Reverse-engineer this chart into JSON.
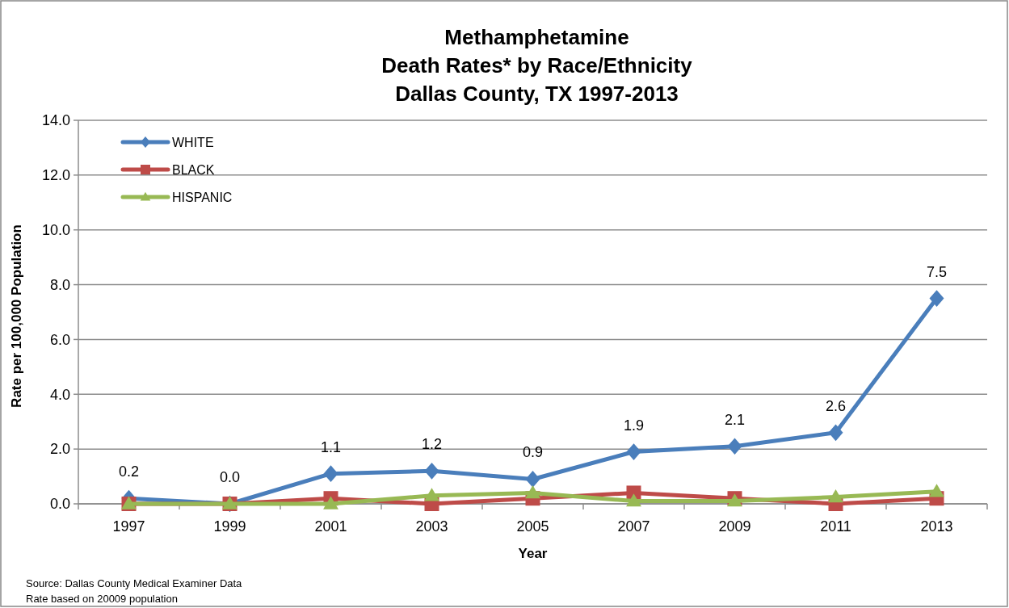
{
  "chart_data": {
    "type": "line",
    "title": "Methamphetamine\nDeath Rates* by Race/Ethnicity\nDallas County, TX 1997-2013",
    "xlabel": "Year",
    "ylabel": "Rate per 100,000 Population",
    "categories": [
      "1997",
      "1999",
      "2001",
      "2003",
      "2005",
      "2007",
      "2009",
      "2011",
      "2013"
    ],
    "series": [
      {
        "name": "WHITE",
        "color": "#4a7ebb",
        "marker": "diamond",
        "values": [
          0.2,
          0.0,
          1.1,
          1.2,
          0.9,
          1.9,
          2.1,
          2.6,
          7.5
        ],
        "value_labels": [
          "0.2",
          "0.0",
          "1.1",
          "1.2",
          "0.9",
          "1.9",
          "2.1",
          "2.6",
          "7.5"
        ]
      },
      {
        "name": "BLACK",
        "color": "#be4b48",
        "marker": "square",
        "values": [
          0.0,
          0.0,
          0.2,
          0.0,
          0.2,
          0.4,
          0.2,
          0.0,
          0.2
        ]
      },
      {
        "name": "HISPANIC",
        "color": "#98b954",
        "marker": "triangle",
        "values": [
          0.0,
          0.0,
          0.0,
          0.3,
          0.4,
          0.1,
          0.1,
          0.25,
          0.45
        ]
      }
    ],
    "ylim": [
      0,
      14
    ],
    "yticks": [
      {
        "value": 0,
        "label": "0.0"
      },
      {
        "value": 2,
        "label": "2.0"
      },
      {
        "value": 4,
        "label": "4.0"
      },
      {
        "value": 6,
        "label": "6.0"
      },
      {
        "value": 8,
        "label": "8.0"
      },
      {
        "value": 10,
        "label": "10.0"
      },
      {
        "value": 12,
        "label": "12.0"
      },
      {
        "value": 14,
        "label": "14.0"
      }
    ],
    "grid": "y",
    "legend": "top left",
    "annotations": [
      "Source: Dallas County Medical Examiner Data",
      "Rate based on 20009 population"
    ]
  }
}
